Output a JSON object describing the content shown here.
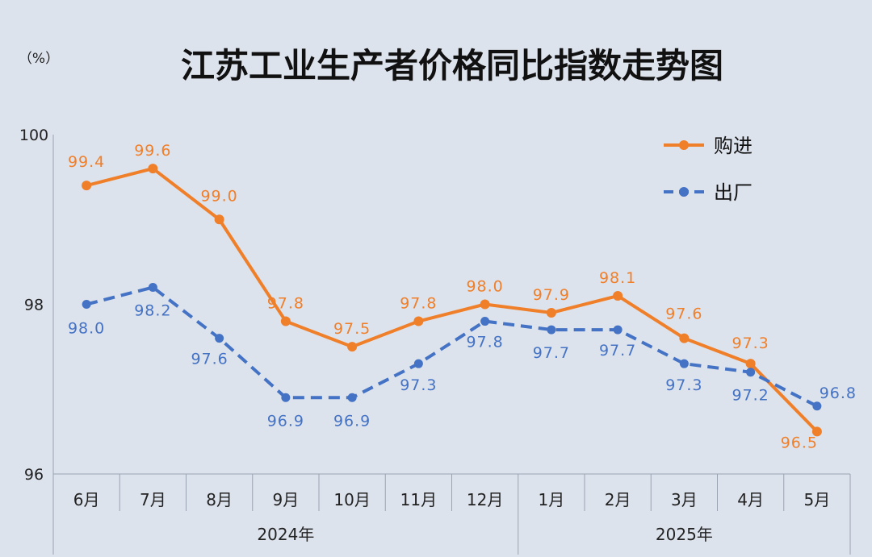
{
  "chart_data": {
    "type": "line",
    "title": "江苏工业生产者价格同比指数走势图",
    "yunit": "（%）",
    "ylim": [
      96,
      100
    ],
    "yticks": [
      96,
      98,
      100
    ],
    "categories": [
      "6月",
      "7月",
      "8月",
      "9月",
      "10月",
      "11月",
      "12月",
      "1月",
      "2月",
      "3月",
      "4月",
      "5月"
    ],
    "year_groups": [
      {
        "label": "2024年",
        "start": 0,
        "end": 6
      },
      {
        "label": "2025年",
        "start": 7,
        "end": 11
      }
    ],
    "series": [
      {
        "name": "购进",
        "color": "#f07f2a",
        "style": "solid",
        "values": [
          99.4,
          99.6,
          99.0,
          97.8,
          97.5,
          97.8,
          98.0,
          97.9,
          98.1,
          97.6,
          97.3,
          96.5
        ]
      },
      {
        "name": "出厂",
        "color": "#4472c4",
        "style": "dashed",
        "values": [
          98.0,
          98.2,
          97.6,
          96.9,
          96.9,
          97.3,
          97.8,
          97.7,
          97.7,
          97.3,
          97.2,
          96.8
        ]
      }
    ],
    "value_labels": {
      "purchase": [
        "99.4",
        "99.6",
        "99.0",
        "97.8",
        "97.5",
        "97.8",
        "98.0",
        "97.9",
        "98.1",
        "97.6",
        "97.3",
        "96.5"
      ],
      "output": [
        "98.0",
        "98.2",
        "97.6",
        "96.9",
        "96.9",
        "97.3",
        "97.8",
        "97.7",
        "97.7",
        "97.3",
        "97.2",
        "96.8"
      ]
    },
    "legend_position": "top-right",
    "grid": false
  }
}
